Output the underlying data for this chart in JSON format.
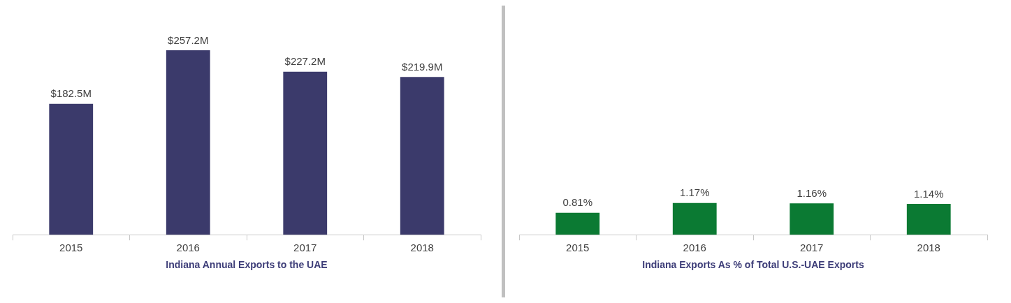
{
  "chart_data": [
    {
      "type": "bar",
      "xlabel": "Indiana Annual Exports to the UAE",
      "categories": [
        "2015",
        "2016",
        "2017",
        "2018"
      ],
      "values": [
        182.5,
        257.2,
        227.2,
        219.9
      ],
      "value_labels": [
        "$182.5M",
        "$257.2M",
        "$227.2M",
        "$219.9M"
      ],
      "color": "#3b3a6b"
    },
    {
      "type": "bar",
      "xlabel": "Indiana Exports As % of Total U.S.-UAE Exports",
      "categories": [
        "2015",
        "2016",
        "2017",
        "2018"
      ],
      "values": [
        0.81,
        1.17,
        1.16,
        1.14
      ],
      "value_labels": [
        "0.81%",
        "1.17%",
        "1.16%",
        "1.14%"
      ],
      "color": "#0b7a33"
    }
  ]
}
